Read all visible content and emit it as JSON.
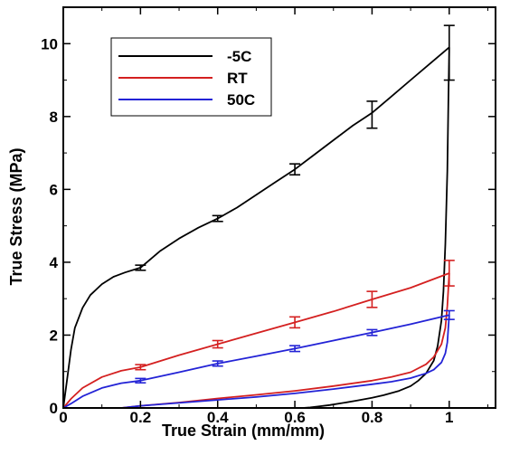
{
  "chart_data": {
    "type": "line",
    "xlabel": "True Strain (mm/mm)",
    "ylabel": "True Stress (MPa)",
    "xlim": [
      0,
      1.12
    ],
    "ylim": [
      0,
      11
    ],
    "x_ticks": [
      0,
      0.2,
      0.4,
      0.6,
      0.8,
      1
    ],
    "x_tick_labels": [
      "0",
      "0.2",
      "0.4",
      "0.6",
      "0.8",
      "1"
    ],
    "y_ticks": [
      0,
      2,
      4,
      6,
      8,
      10
    ],
    "y_tick_labels": [
      "0",
      "2",
      "4",
      "6",
      "8",
      "10"
    ],
    "grid": false,
    "legend": {
      "position": "top-left",
      "entries": [
        "-5C",
        "RT",
        "50C"
      ]
    },
    "series": [
      {
        "name": "-5C",
        "color": "#000000",
        "loading": {
          "x": [
            0,
            0.01,
            0.02,
            0.03,
            0.05,
            0.07,
            0.1,
            0.13,
            0.16,
            0.2,
            0.25,
            0.3,
            0.35,
            0.4,
            0.45,
            0.5,
            0.55,
            0.6,
            0.65,
            0.7,
            0.75,
            0.8,
            0.85,
            0.9,
            0.95,
            1.0
          ],
          "y": [
            0,
            0.8,
            1.6,
            2.2,
            2.75,
            3.1,
            3.4,
            3.6,
            3.72,
            3.85,
            4.3,
            4.65,
            4.95,
            5.2,
            5.5,
            5.85,
            6.2,
            6.55,
            6.95,
            7.35,
            7.75,
            8.1,
            8.55,
            9.0,
            9.45,
            9.9
          ]
        },
        "unloading": {
          "x": [
            1.0,
            0.998,
            0.995,
            0.99,
            0.985,
            0.98,
            0.97,
            0.96,
            0.94,
            0.92,
            0.9,
            0.87,
            0.83,
            0.8,
            0.76,
            0.72,
            0.69,
            0.66,
            0.64,
            0.62
          ],
          "y": [
            9.9,
            8.5,
            6.5,
            4.5,
            3.2,
            2.4,
            1.7,
            1.3,
            0.95,
            0.75,
            0.6,
            0.47,
            0.35,
            0.28,
            0.2,
            0.13,
            0.08,
            0.04,
            0.015,
            0
          ]
        },
        "error_bars": {
          "x": [
            0.2,
            0.4,
            0.6,
            0.8,
            1.0
          ],
          "y": [
            3.85,
            5.2,
            6.55,
            8.05,
            9.75
          ],
          "err": [
            0.07,
            0.08,
            0.15,
            0.37,
            0.75
          ]
        }
      },
      {
        "name": "RT",
        "color": "#d42020",
        "loading": {
          "x": [
            0,
            0.02,
            0.05,
            0.1,
            0.15,
            0.2,
            0.3,
            0.4,
            0.5,
            0.6,
            0.7,
            0.8,
            0.9,
            1.0
          ],
          "y": [
            0,
            0.25,
            0.55,
            0.85,
            1.02,
            1.12,
            1.45,
            1.75,
            2.05,
            2.35,
            2.65,
            2.98,
            3.3,
            3.7
          ]
        },
        "unloading": {
          "x": [
            1.0,
            0.995,
            0.99,
            0.98,
            0.96,
            0.94,
            0.9,
            0.85,
            0.8,
            0.7,
            0.6,
            0.5,
            0.4,
            0.3,
            0.2,
            0.15
          ],
          "y": [
            3.7,
            2.8,
            2.2,
            1.75,
            1.4,
            1.2,
            0.98,
            0.85,
            0.75,
            0.6,
            0.47,
            0.36,
            0.26,
            0.15,
            0.06,
            0
          ]
        },
        "error_bars": {
          "x": [
            0.2,
            0.4,
            0.6,
            0.8,
            1.0
          ],
          "y": [
            1.12,
            1.75,
            2.35,
            2.98,
            3.7
          ],
          "err": [
            0.07,
            0.1,
            0.15,
            0.22,
            0.35
          ]
        }
      },
      {
        "name": "50C",
        "color": "#2323d6",
        "loading": {
          "x": [
            0,
            0.02,
            0.05,
            0.1,
            0.15,
            0.2,
            0.3,
            0.4,
            0.5,
            0.6,
            0.7,
            0.8,
            0.9,
            1.0
          ],
          "y": [
            0,
            0.12,
            0.32,
            0.55,
            0.68,
            0.75,
            0.98,
            1.22,
            1.42,
            1.63,
            1.85,
            2.07,
            2.3,
            2.55
          ]
        },
        "unloading": {
          "x": [
            1.0,
            0.995,
            0.99,
            0.98,
            0.96,
            0.94,
            0.9,
            0.85,
            0.8,
            0.7,
            0.6,
            0.5,
            0.4,
            0.3,
            0.2,
            0.15
          ],
          "y": [
            2.55,
            1.8,
            1.5,
            1.25,
            1.05,
            0.95,
            0.82,
            0.72,
            0.65,
            0.52,
            0.4,
            0.3,
            0.22,
            0.14,
            0.06,
            0
          ]
        },
        "error_bars": {
          "x": [
            0.2,
            0.4,
            0.6,
            0.8,
            1.0
          ],
          "y": [
            0.75,
            1.22,
            1.63,
            2.07,
            2.55
          ],
          "err": [
            0.06,
            0.07,
            0.08,
            0.08,
            0.12
          ]
        }
      }
    ]
  }
}
